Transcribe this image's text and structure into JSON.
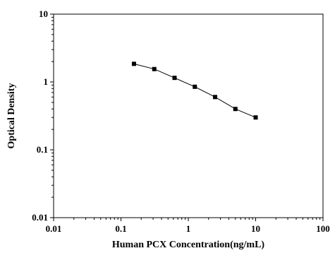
{
  "chart_data": {
    "type": "scatter",
    "title": "",
    "xlabel": "Human PCX Concentration(ng/mL)",
    "ylabel": "Optical Density",
    "x_scale": "log",
    "y_scale": "log",
    "xlim": [
      0.01,
      100
    ],
    "ylim": [
      0.01,
      10
    ],
    "x_ticks": [
      "0.01",
      "0.1",
      "1",
      "10",
      "100"
    ],
    "y_ticks": [
      "0.01",
      "0.1",
      "1",
      "10"
    ],
    "grid": false,
    "legend": "none",
    "series": [
      {
        "x": [
          0.156,
          0.3125,
          0.625,
          1.25,
          2.5,
          5,
          10
        ],
        "y": [
          1.85,
          1.55,
          1.15,
          0.85,
          0.6,
          0.4,
          0.3
        ],
        "marker": "square",
        "line": "connected",
        "color": "#000000"
      }
    ]
  }
}
